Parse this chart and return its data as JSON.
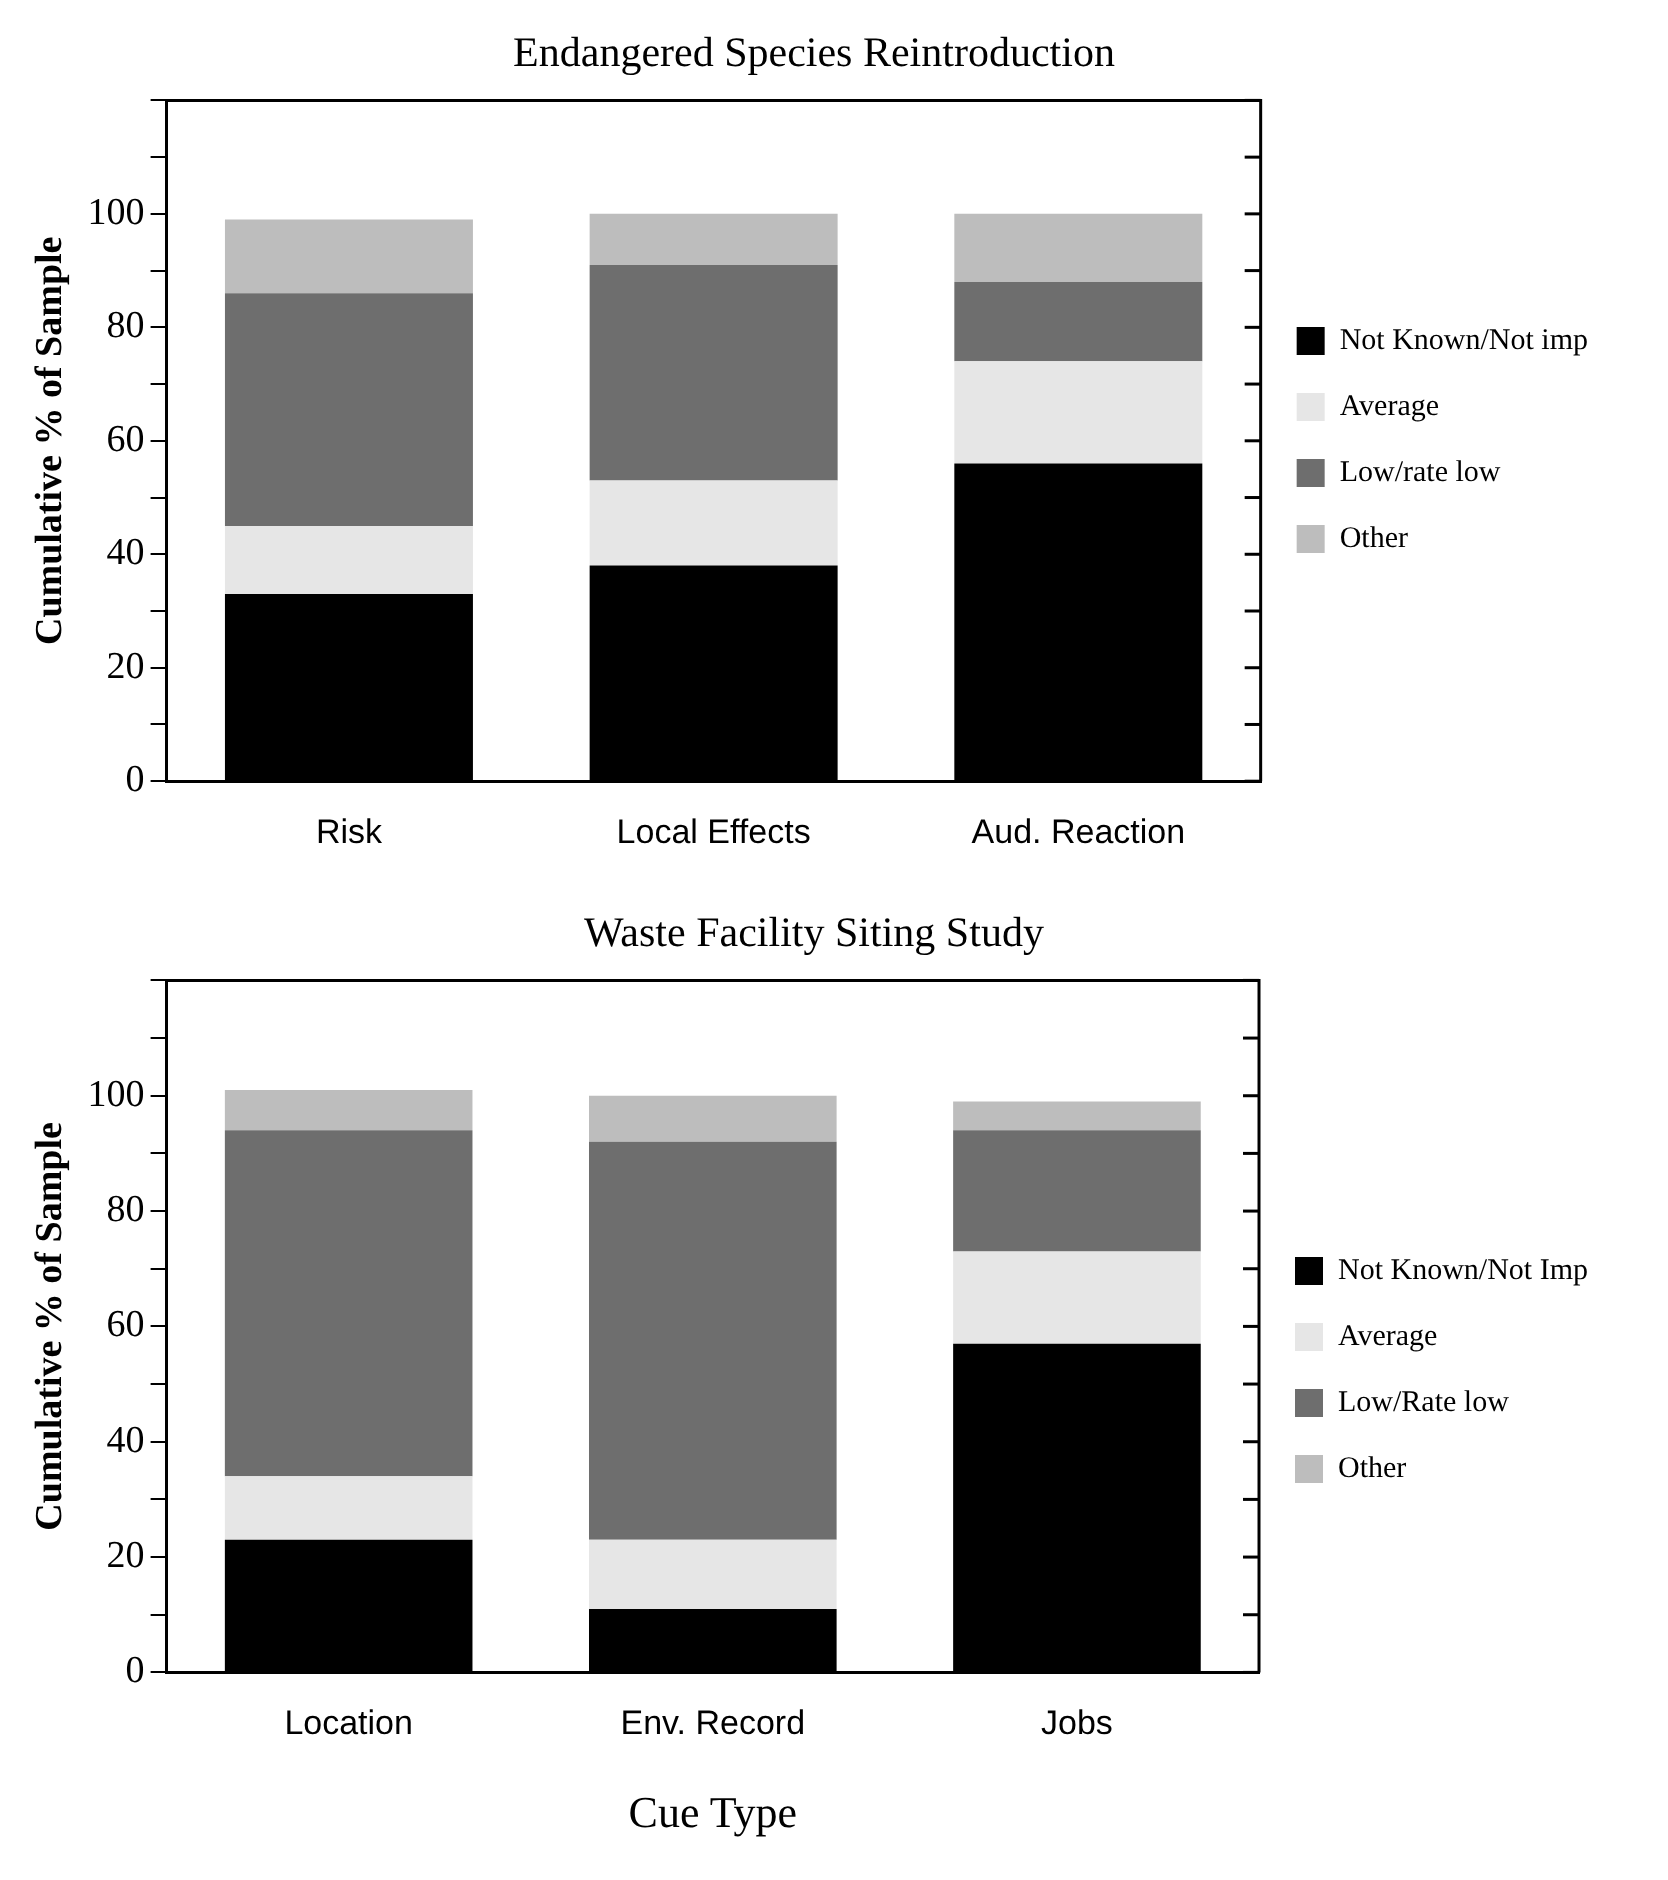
{
  "chart_data": [
    {
      "type": "bar",
      "title": "Endangered Species Reintroduction",
      "ylabel": "Cumulative % of Sample",
      "stacked": true,
      "legend": "right",
      "grid": false,
      "categories": [
        "Risk",
        "Local Effects",
        "Aud. Reaction"
      ],
      "series": [
        {
          "name": "Not Known/Not imp",
          "color": "#000000",
          "values": [
            33,
            38,
            56
          ]
        },
        {
          "name": "Average",
          "color": "#e6e6e6",
          "values": [
            12,
            15,
            18
          ]
        },
        {
          "name": "Low/rate low",
          "color": "#6e6e6e",
          "values": [
            41,
            38,
            14
          ]
        },
        {
          "name": "Other",
          "color": "#bdbdbd",
          "values": [
            13,
            9,
            12
          ]
        }
      ],
      "ylim": [
        0,
        120
      ],
      "yticks": [
        0,
        {
          "value": 10,
          "label": null
        },
        20,
        {
          "value": 30,
          "label": null
        },
        40,
        {
          "value": 50,
          "label": null
        },
        60,
        {
          "value": 70,
          "label": null
        },
        80,
        {
          "value": 90,
          "label": null
        },
        100,
        {
          "value": 110,
          "label": null
        },
        {
          "value": 120,
          "label": null
        }
      ]
    },
    {
      "type": "bar",
      "title": "Waste Facility Siting Study",
      "ylabel": "Cumulative % of Sample",
      "xlabel": "Cue Type",
      "stacked": true,
      "legend": "right",
      "grid": false,
      "categories": [
        "Location",
        "Env. Record",
        "Jobs"
      ],
      "series": [
        {
          "name": "Not Known/Not Imp",
          "color": "#000000",
          "values": [
            23,
            11,
            57
          ]
        },
        {
          "name": "Average",
          "color": "#e6e6e6",
          "values": [
            11,
            12,
            16
          ]
        },
        {
          "name": "Low/Rate low",
          "color": "#6e6e6e",
          "values": [
            60,
            69,
            21
          ]
        },
        {
          "name": "Other",
          "color": "#bdbdbd",
          "values": [
            7,
            8,
            5
          ]
        }
      ],
      "ylim": [
        0,
        120
      ],
      "yticks": [
        0,
        {
          "value": 10,
          "label": null
        },
        20,
        {
          "value": 30,
          "label": null
        },
        40,
        {
          "value": 50,
          "label": null
        },
        60,
        {
          "value": 70,
          "label": null
        },
        80,
        {
          "value": 90,
          "label": null
        },
        100,
        {
          "value": 110,
          "label": null
        },
        {
          "value": 120,
          "label": null
        }
      ]
    }
  ]
}
